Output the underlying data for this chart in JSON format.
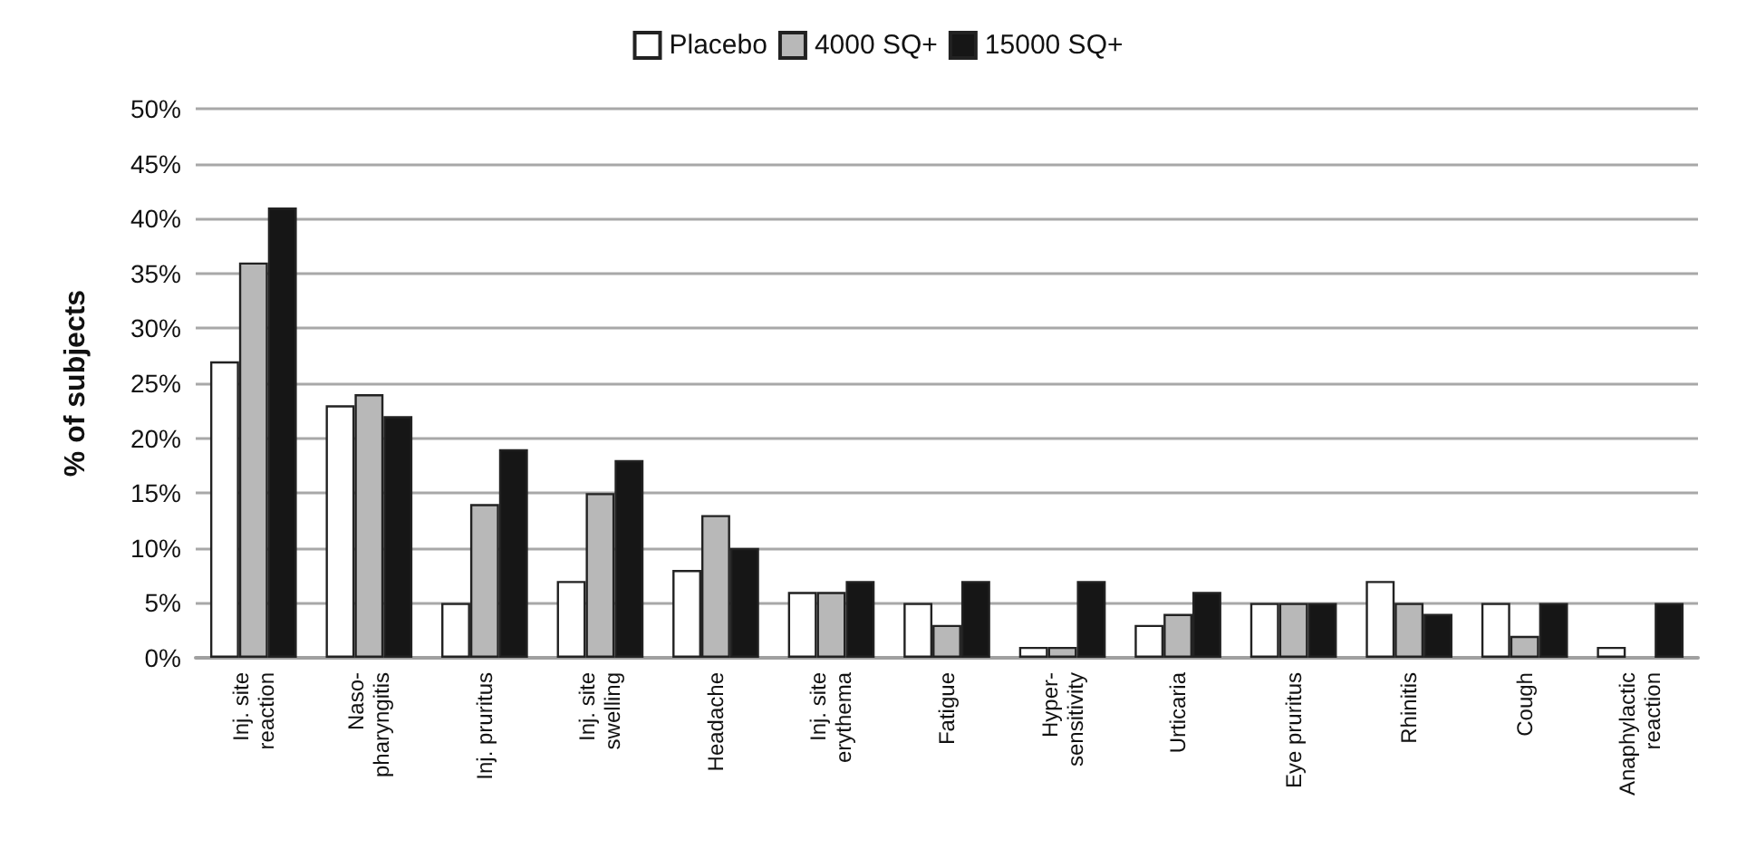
{
  "chart_data": {
    "type": "bar",
    "ylabel": "% of subjects",
    "categories": [
      "Inj. site\nreaction",
      "Naso-\npharyngitis",
      "Inj. pruritus",
      "Inj. site\nswelling",
      "Headache",
      "Inj. site\nerythema",
      "Fatigue",
      "Hyper-\nsensitivity",
      "Urticaria",
      "Eye pruritus",
      "Rhinitis",
      "Cough",
      "Anaphylactic\nreaction"
    ],
    "series": [
      {
        "name": "Placebo",
        "color": "#ffffff",
        "values": [
          27,
          23,
          5,
          7,
          8,
          6,
          5,
          1,
          3,
          5,
          7,
          5,
          1
        ]
      },
      {
        "name": "4000 SQ+",
        "color": "#b8b8b8",
        "values": [
          36,
          24,
          14,
          15,
          13,
          6,
          3,
          1,
          4,
          5,
          5,
          2,
          0
        ]
      },
      {
        "name": "15000 SQ+",
        "color": "#161616",
        "values": [
          41,
          22,
          19,
          18,
          10,
          7,
          7,
          7,
          6,
          5,
          4,
          5,
          5
        ]
      }
    ],
    "ylim": [
      0,
      50
    ],
    "yticks": [
      {
        "value": 0,
        "label": "0%"
      },
      {
        "value": 5,
        "label": "5%"
      },
      {
        "value": 10,
        "label": "10%"
      },
      {
        "value": 15,
        "label": "15%"
      },
      {
        "value": 20,
        "label": "20%"
      },
      {
        "value": 25,
        "label": "25%"
      },
      {
        "value": 30,
        "label": "30%"
      },
      {
        "value": 35,
        "label": "35%"
      },
      {
        "value": 40,
        "label": "40%"
      },
      {
        "value": 45,
        "label": "45%"
      },
      {
        "value": 50,
        "label": "50%"
      }
    ],
    "grid": "y",
    "legend": "top"
  }
}
